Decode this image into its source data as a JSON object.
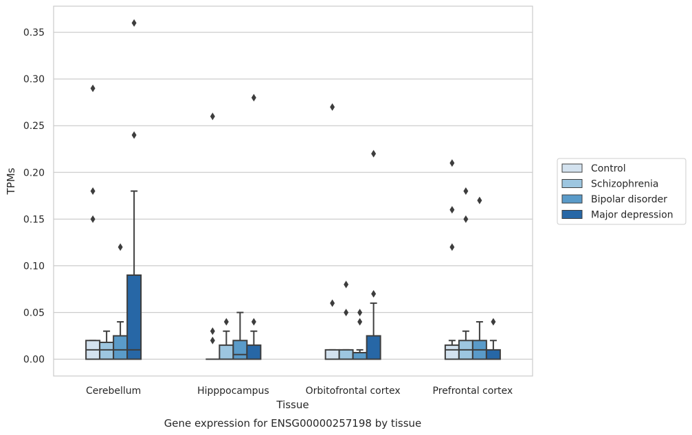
{
  "chart_data": {
    "type": "boxplot",
    "caption": "Gene expression for ENSG00000257198 by tissue",
    "xlabel": "Tissue",
    "ylabel": "TPMs",
    "ylim": [
      -0.018,
      0.378
    ],
    "yticks": [
      "0.00",
      "0.05",
      "0.10",
      "0.15",
      "0.20",
      "0.25",
      "0.30",
      "0.35"
    ],
    "categories": [
      "Cerebellum",
      "Hipppocampus",
      "Orbitofrontal cortex",
      "Prefrontal cortex"
    ],
    "grid": "horizontal",
    "legend_position": "right",
    "series": [
      {
        "name": "Control",
        "color": "#d3e2ef",
        "boxes": [
          {
            "q1": 0.0,
            "median": 0.01,
            "q3": 0.02,
            "whisker_low": 0.0,
            "whisker_high": 0.02,
            "outliers": [
              0.15,
              0.18,
              0.29
            ]
          },
          {
            "q1": 0.0,
            "median": 0.0,
            "q3": 0.0,
            "whisker_low": 0.0,
            "whisker_high": 0.0,
            "outliers": [
              0.02,
              0.03,
              0.26
            ]
          },
          {
            "q1": 0.0,
            "median": 0.0,
            "q3": 0.01,
            "whisker_low": 0.0,
            "whisker_high": 0.01,
            "outliers": [
              0.06,
              0.27
            ]
          },
          {
            "q1": 0.0,
            "median": 0.01,
            "q3": 0.015,
            "whisker_low": 0.0,
            "whisker_high": 0.02,
            "outliers": [
              0.12,
              0.16,
              0.21
            ]
          }
        ]
      },
      {
        "name": "Schizophrenia",
        "color": "#9dc6e0",
        "boxes": [
          {
            "q1": 0.0,
            "median": 0.01,
            "q3": 0.018,
            "whisker_low": 0.0,
            "whisker_high": 0.03,
            "outliers": []
          },
          {
            "q1": 0.0,
            "median": 0.0,
            "q3": 0.015,
            "whisker_low": 0.0,
            "whisker_high": 0.03,
            "outliers": [
              0.04
            ]
          },
          {
            "q1": 0.0,
            "median": 0.0,
            "q3": 0.01,
            "whisker_low": 0.0,
            "whisker_high": 0.01,
            "outliers": [
              0.05,
              0.08
            ]
          },
          {
            "q1": 0.0,
            "median": 0.01,
            "q3": 0.02,
            "whisker_low": 0.0,
            "whisker_high": 0.03,
            "outliers": [
              0.15,
              0.18
            ]
          }
        ]
      },
      {
        "name": "Bipolar disorder",
        "color": "#5a9bc9",
        "boxes": [
          {
            "q1": 0.0,
            "median": 0.01,
            "q3": 0.025,
            "whisker_low": 0.0,
            "whisker_high": 0.04,
            "outliers": [
              0.12
            ]
          },
          {
            "q1": 0.0,
            "median": 0.005,
            "q3": 0.02,
            "whisker_low": 0.0,
            "whisker_high": 0.05,
            "outliers": []
          },
          {
            "q1": 0.0,
            "median": 0.0,
            "q3": 0.007,
            "whisker_low": 0.0,
            "whisker_high": 0.01,
            "outliers": [
              0.04,
              0.05
            ]
          },
          {
            "q1": 0.0,
            "median": 0.01,
            "q3": 0.02,
            "whisker_low": 0.0,
            "whisker_high": 0.04,
            "outliers": [
              0.17
            ]
          }
        ]
      },
      {
        "name": "Major depression",
        "color": "#2767a6",
        "boxes": [
          {
            "q1": 0.0,
            "median": 0.01,
            "q3": 0.09,
            "whisker_low": 0.0,
            "whisker_high": 0.18,
            "outliers": [
              0.24,
              0.36
            ]
          },
          {
            "q1": 0.0,
            "median": 0.0,
            "q3": 0.015,
            "whisker_low": 0.0,
            "whisker_high": 0.03,
            "outliers": [
              0.04,
              0.28
            ]
          },
          {
            "q1": 0.0,
            "median": 0.0,
            "q3": 0.025,
            "whisker_low": 0.0,
            "whisker_high": 0.06,
            "outliers": [
              0.07,
              0.22
            ]
          },
          {
            "q1": 0.0,
            "median": 0.0,
            "q3": 0.01,
            "whisker_low": 0.0,
            "whisker_high": 0.02,
            "outliers": [
              0.04
            ]
          }
        ]
      }
    ]
  }
}
